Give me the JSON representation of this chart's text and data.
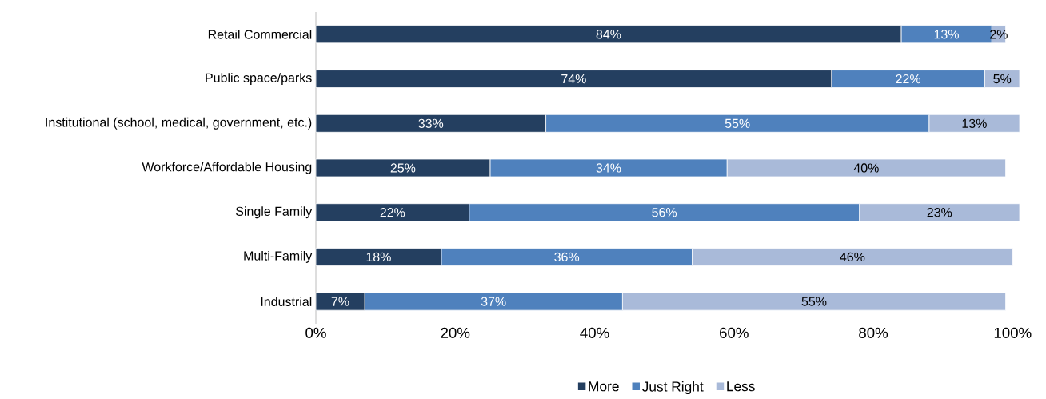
{
  "chart_data": {
    "type": "bar",
    "orientation": "horizontal",
    "stacked": true,
    "categories": [
      "Retail Commercial",
      "Public space/parks",
      "Institutional (school, medical,  government, etc.)",
      "Workforce/Affordable Housing",
      "Single Family",
      "Multi-Family",
      "Industrial"
    ],
    "series": [
      {
        "name": "More",
        "color": "#243f60",
        "values": [
          84,
          74,
          33,
          25,
          22,
          18,
          7
        ],
        "value_labels": [
          "84%",
          "74%",
          "33%",
          "25%",
          "22%",
          "18%",
          "7%"
        ]
      },
      {
        "name": "Just Right",
        "color": "#4f81bd",
        "values": [
          13,
          22,
          55,
          34,
          56,
          36,
          37
        ],
        "value_labels": [
          "13%",
          "22%",
          "55%",
          "34%",
          "56%",
          "36%",
          "37%"
        ]
      },
      {
        "name": "Less",
        "color": "#a9bad9",
        "values": [
          2,
          5,
          13,
          40,
          23,
          46,
          55
        ],
        "value_labels": [
          "2%",
          "5%",
          "13%",
          "40%",
          "23%",
          "46%",
          "55%"
        ]
      }
    ],
    "xlim": [
      0,
      101
    ],
    "xticks": [
      {
        "value": 0,
        "label": "0%"
      },
      {
        "value": 20,
        "label": "20%"
      },
      {
        "value": 40,
        "label": "40%"
      },
      {
        "value": 60,
        "label": "60%"
      },
      {
        "value": 80,
        "label": "80%"
      },
      {
        "value": 100,
        "label": "100%"
      }
    ],
    "grid": false,
    "legend": "bottom"
  }
}
